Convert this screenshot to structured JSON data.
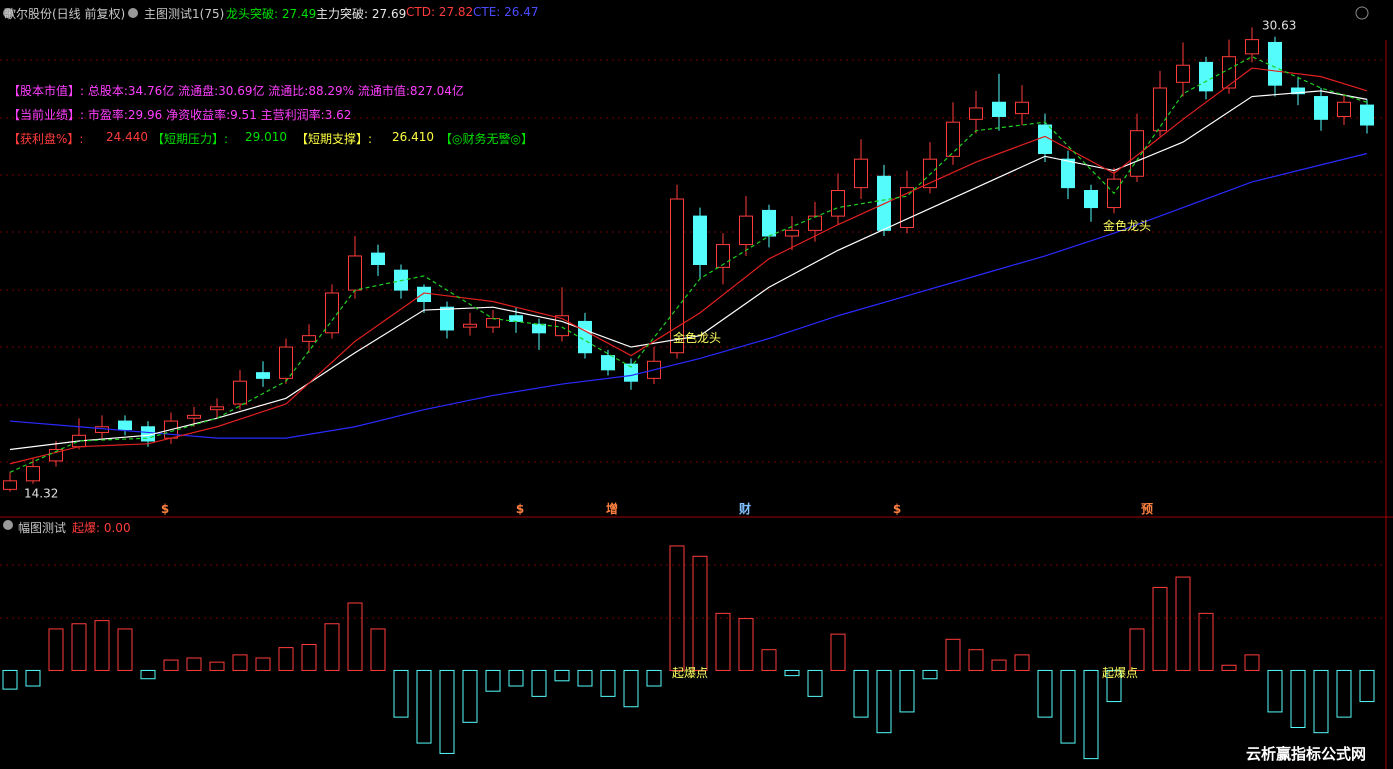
{
  "header": {
    "stock": "歌尔股份(日线 前复权)",
    "indicator": "主图测试1(75)",
    "items": [
      "龙头突破: 27.49",
      "主力突破: 27.69",
      "CTD: 27.82",
      "CTE: 26.47"
    ]
  },
  "info": {
    "line1": "【股本市值】: 总股本:34.76亿 流通盘:30.69亿 流通比:88.29% 流通市值:827.04亿",
    "line2": "【当前业绩】: 市盈率:29.96 净资收益率:9.51 主营利润率:3.62",
    "line3": [
      "【获利盘%】:",
      "24.440",
      "【短期压力】:",
      "29.010",
      "【短期支撑】:",
      "26.410",
      "【◎财务无警◎】"
    ]
  },
  "sub_header": {
    "title": "幅图测试",
    "item": "起爆: 0.00"
  },
  "watermark": "云析赢指标公式网",
  "chart_data": [
    {
      "type": "candlestick",
      "ylim": [
        13.5,
        31.1
      ],
      "up_color": "#ff3c3c",
      "down_color": "#54fcfc",
      "open": [
        14.4,
        14.7,
        15.4,
        15.9,
        16.4,
        16.8,
        16.6,
        16.2,
        16.9,
        17.2,
        17.4,
        18.5,
        18.3,
        19.6,
        19.9,
        21.4,
        22.7,
        22.1,
        21.5,
        20.8,
        20.1,
        20.1,
        20.5,
        20.2,
        19.8,
        20.3,
        19.1,
        18.8,
        18.3,
        19.2,
        24.0,
        22.2,
        23.0,
        24.2,
        23.3,
        23.5,
        24.0,
        25.0,
        25.4,
        23.6,
        25.0,
        26.1,
        27.4,
        28.0,
        27.6,
        27.2,
        26.0,
        24.9,
        24.3,
        25.4,
        27.0,
        28.7,
        29.4,
        28.5,
        29.7,
        30.1,
        28.5,
        28.2,
        27.5,
        27.9
      ],
      "high": [
        15.0,
        15.5,
        16.1,
        16.9,
        17.0,
        17.0,
        16.8,
        17.1,
        17.3,
        17.6,
        18.6,
        18.9,
        19.7,
        20.2,
        21.6,
        23.3,
        23.0,
        22.3,
        21.6,
        21.0,
        20.6,
        20.7,
        20.8,
        20.4,
        21.5,
        20.6,
        19.3,
        19.0,
        19.4,
        25.1,
        24.3,
        23.4,
        24.7,
        24.4,
        24.0,
        24.5,
        25.5,
        26.7,
        25.8,
        25.6,
        26.6,
        28.0,
        28.4,
        29.0,
        28.6,
        27.6,
        26.3,
        25.1,
        25.7,
        27.6,
        29.1,
        30.1,
        29.6,
        30.2,
        30.63,
        30.3,
        28.9,
        28.5,
        28.3,
        28.1
      ],
      "low": [
        14.32,
        14.6,
        15.2,
        15.8,
        16.2,
        16.3,
        15.9,
        16.0,
        16.6,
        16.9,
        17.2,
        18.0,
        18.1,
        19.2,
        19.7,
        21.1,
        21.9,
        21.1,
        20.6,
        19.7,
        19.8,
        19.9,
        19.9,
        19.3,
        19.6,
        19.0,
        18.4,
        17.9,
        18.1,
        19.0,
        21.8,
        21.6,
        22.6,
        22.9,
        22.8,
        23.1,
        23.7,
        24.6,
        23.3,
        23.4,
        24.8,
        25.8,
        26.9,
        27.0,
        27.2,
        25.9,
        24.6,
        23.8,
        24.1,
        25.2,
        26.8,
        28.2,
        28.1,
        28.3,
        29.4,
        28.2,
        27.9,
        27.0,
        27.2,
        26.9
      ],
      "close": [
        14.7,
        15.2,
        15.8,
        16.3,
        16.6,
        16.5,
        16.1,
        16.8,
        17.0,
        17.3,
        18.2,
        18.3,
        19.4,
        19.8,
        21.3,
        22.6,
        22.3,
        21.4,
        21.0,
        20.0,
        20.2,
        20.4,
        20.3,
        19.9,
        20.5,
        19.2,
        18.6,
        18.2,
        18.9,
        24.6,
        22.3,
        23.0,
        24.0,
        23.3,
        23.5,
        24.0,
        24.9,
        26.0,
        23.5,
        25.0,
        26.0,
        27.3,
        27.8,
        27.5,
        28.0,
        26.2,
        25.0,
        24.3,
        25.3,
        27.0,
        28.5,
        29.3,
        28.4,
        29.6,
        30.2,
        28.6,
        28.3,
        27.4,
        28.0,
        27.2
      ],
      "line_x": [
        0,
        3,
        6,
        9,
        12,
        15,
        18,
        21,
        24,
        27,
        30,
        33,
        36,
        39,
        42,
        45,
        48,
        51,
        54,
        57,
        59
      ],
      "lines": [
        {
          "color": "#2a2aff",
          "style": "solid",
          "values": [
            16.8,
            16.6,
            16.4,
            16.2,
            16.2,
            16.6,
            17.2,
            17.7,
            18.1,
            18.4,
            19.0,
            19.7,
            20.5,
            21.2,
            21.9,
            22.6,
            23.4,
            24.3,
            25.2,
            25.8,
            26.2
          ]
        },
        {
          "color": "#ffffff",
          "style": "solid",
          "values": [
            15.8,
            16.1,
            16.3,
            16.9,
            17.6,
            19.2,
            20.7,
            20.8,
            20.3,
            19.4,
            19.8,
            21.5,
            22.8,
            23.9,
            25.0,
            26.1,
            25.6,
            26.6,
            28.2,
            28.4,
            28.1
          ]
        },
        {
          "color": "#e02020",
          "style": "solid",
          "values": [
            15.3,
            15.9,
            16.0,
            16.6,
            17.4,
            19.6,
            21.3,
            21.0,
            20.4,
            19.1,
            20.6,
            22.5,
            23.7,
            24.8,
            25.9,
            26.8,
            25.5,
            27.4,
            29.2,
            28.9,
            28.4
          ]
        },
        {
          "color": "#20d020",
          "style": "dashed",
          "values": [
            15.0,
            16.1,
            16.2,
            16.9,
            18.2,
            21.4,
            21.9,
            20.4,
            20.1,
            18.7,
            21.8,
            23.3,
            24.3,
            24.7,
            27.0,
            27.3,
            24.8,
            28.3,
            29.6,
            28.5,
            28.0
          ]
        }
      ],
      "annotations": [
        "30.63",
        "14.32",
        "金色龙头",
        "金色龙头"
      ],
      "markers": [
        "$",
        "$",
        "增",
        "财",
        "$",
        "预"
      ]
    },
    {
      "type": "bar",
      "ylim": [
        -95,
        145
      ],
      "pos_color": "#ff3c3c",
      "neg_color": "#54fcfc",
      "values": [
        -18,
        -15,
        40,
        45,
        48,
        40,
        -8,
        10,
        12,
        8,
        15,
        12,
        22,
        25,
        45,
        65,
        40,
        -45,
        -70,
        -80,
        -50,
        -20,
        -15,
        -25,
        -10,
        -15,
        -25,
        -35,
        -15,
        120,
        110,
        55,
        50,
        20,
        -5,
        -25,
        35,
        -45,
        -60,
        -40,
        -8,
        30,
        20,
        10,
        15,
        -45,
        -70,
        -85,
        -30,
        40,
        80,
        90,
        55,
        5,
        15,
        -40,
        -55,
        -60,
        -45,
        -30
      ],
      "annotations": [
        "起爆点",
        "起爆点"
      ]
    }
  ]
}
